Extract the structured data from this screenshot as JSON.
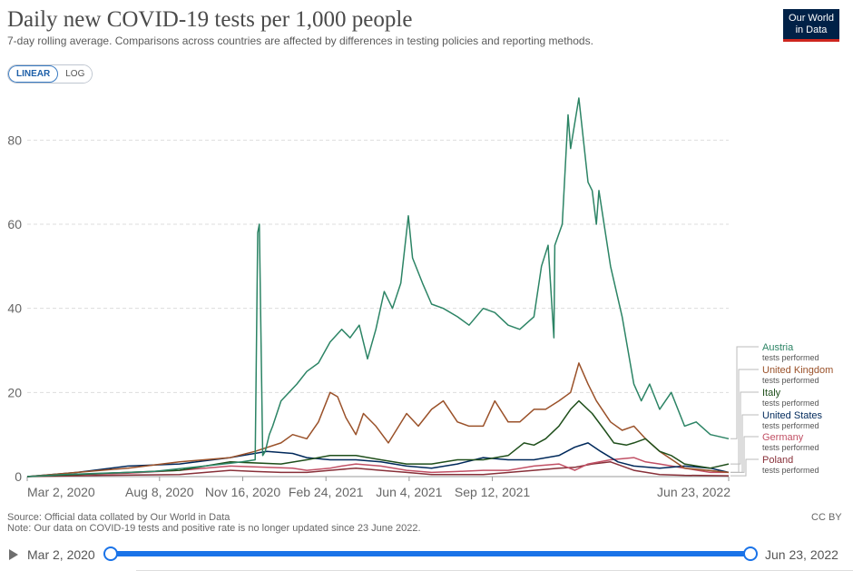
{
  "header": {
    "title": "Daily new COVID-19 tests per 1,000 people",
    "subtitle": "7-day rolling average. Comparisons across countries are affected by differences in testing policies and reporting methods.",
    "logo_line1": "Our World",
    "logo_line2": "in Data"
  },
  "controls": {
    "linear_label": "LINEAR",
    "log_label": "LOG",
    "active": "LINEAR"
  },
  "footer": {
    "source": "Source: Official data collated by Our World in Data",
    "note": "Note: Our data on COVID-19 tests and positive rate is no longer updated since 23 June 2022.",
    "license": "CC BY"
  },
  "timeline": {
    "start_label": "Mar 2, 2020",
    "end_label": "Jun 23, 2022"
  },
  "colors": {
    "Austria": "#2c8465",
    "United Kingdom": "#9a5129",
    "Italy": "#1f4f1b",
    "United States": "#00295b",
    "Germany": "#c15065",
    "Poland": "#883039",
    "grid": "#dddddd",
    "axis_text": "#666666"
  },
  "chart_data": {
    "type": "line",
    "title": "Daily new COVID-19 tests per 1,000 people",
    "xlim": [
      "2020-03-02",
      "2022-06-23"
    ],
    "ylim": [
      0,
      90
    ],
    "yticks": [
      0,
      20,
      40,
      60,
      80
    ],
    "xticks": [
      "2020-03-02",
      "2020-08-08",
      "2020-11-16",
      "2021-02-24",
      "2021-06-04",
      "2021-09-12",
      "2022-06-23"
    ],
    "xtick_labels": [
      "Mar 2, 2020",
      "Aug 8, 2020",
      "Nov 16, 2020",
      "Feb 24, 2021",
      "Jun 4, 2021",
      "Sep 12, 2021",
      "Jun 23, 2022"
    ],
    "grid": "horizontal dashed",
    "legend": "right, end of lines",
    "series_sublabel": "tests performed",
    "series": [
      {
        "name": "Austria",
        "x": [
          "2020-03-02",
          "2020-04-15",
          "2020-06-01",
          "2020-08-01",
          "2020-10-01",
          "2020-11-15",
          "2020-12-01",
          "2020-12-04",
          "2020-12-06",
          "2020-12-10",
          "2020-12-13",
          "2020-12-18",
          "2020-12-22",
          "2021-01-01",
          "2021-01-20",
          "2021-02-01",
          "2021-02-15",
          "2021-03-01",
          "2021-03-15",
          "2021-03-25",
          "2021-04-05",
          "2021-04-15",
          "2021-04-25",
          "2021-05-05",
          "2021-05-15",
          "2021-05-25",
          "2021-06-03",
          "2021-06-08",
          "2021-06-20",
          "2021-07-01",
          "2021-07-15",
          "2021-08-01",
          "2021-08-15",
          "2021-09-01",
          "2021-09-15",
          "2021-10-01",
          "2021-10-15",
          "2021-11-01",
          "2021-11-10",
          "2021-11-18",
          "2021-11-25",
          "2021-11-26",
          "2021-12-05",
          "2021-12-12",
          "2021-12-15",
          "2021-12-25",
          "2022-01-05",
          "2022-01-10",
          "2022-01-15",
          "2022-01-18",
          "2022-02-01",
          "2022-02-15",
          "2022-03-01",
          "2022-03-10",
          "2022-03-20",
          "2022-04-01",
          "2022-04-15",
          "2022-05-01",
          "2022-05-15",
          "2022-06-01",
          "2022-06-23"
        ],
        "y": [
          0,
          0.5,
          0.8,
          1.2,
          2.5,
          3.5,
          4,
          58,
          60,
          5,
          6,
          10,
          12,
          18,
          22,
          25,
          27,
          32,
          35,
          33,
          36,
          28,
          35,
          44,
          40,
          46,
          62,
          52,
          46,
          41,
          40,
          38,
          36,
          40,
          39,
          36,
          35,
          38,
          50,
          55,
          33,
          55,
          60,
          86,
          78,
          90,
          70,
          68,
          60,
          68,
          50,
          38,
          22,
          18,
          22,
          16,
          20,
          12,
          13,
          10,
          9
        ]
      },
      {
        "name": "United Kingdom",
        "x": [
          "2020-03-02",
          "2020-05-01",
          "2020-07-01",
          "2020-09-01",
          "2020-11-01",
          "2020-12-01",
          "2021-01-01",
          "2021-01-15",
          "2021-02-01",
          "2021-02-15",
          "2021-03-01",
          "2021-03-10",
          "2021-03-20",
          "2021-04-01",
          "2021-04-10",
          "2021-04-25",
          "2021-05-10",
          "2021-06-01",
          "2021-06-15",
          "2021-07-01",
          "2021-07-15",
          "2021-08-01",
          "2021-08-15",
          "2021-09-01",
          "2021-09-15",
          "2021-10-01",
          "2021-10-15",
          "2021-11-01",
          "2021-11-15",
          "2021-12-01",
          "2021-12-15",
          "2021-12-25",
          "2022-01-05",
          "2022-01-15",
          "2022-02-01",
          "2022-02-15",
          "2022-03-01",
          "2022-03-15",
          "2022-04-01",
          "2022-05-01",
          "2022-06-23"
        ],
        "y": [
          0,
          1,
          2,
          3.5,
          4.5,
          6,
          8,
          10,
          9,
          13,
          20,
          19,
          14,
          10,
          15,
          12,
          8,
          15,
          12,
          16,
          18,
          13,
          12,
          12,
          18,
          13,
          13,
          16,
          16,
          18,
          20,
          27,
          22,
          18,
          13,
          11,
          12,
          9,
          6,
          2,
          1
        ]
      },
      {
        "name": "Italy",
        "x": [
          "2020-03-02",
          "2020-05-01",
          "2020-07-01",
          "2020-09-01",
          "2020-11-01",
          "2021-01-01",
          "2021-02-01",
          "2021-03-01",
          "2021-04-01",
          "2021-05-01",
          "2021-06-01",
          "2021-07-01",
          "2021-08-01",
          "2021-09-01",
          "2021-10-01",
          "2021-10-20",
          "2021-11-01",
          "2021-11-15",
          "2021-12-01",
          "2021-12-15",
          "2021-12-25",
          "2022-01-10",
          "2022-01-25",
          "2022-02-05",
          "2022-02-20",
          "2022-03-01",
          "2022-03-15",
          "2022-04-01",
          "2022-04-15",
          "2022-05-01",
          "2022-06-01",
          "2022-06-23"
        ],
        "y": [
          0,
          0.5,
          1,
          1.5,
          3.5,
          3,
          4,
          5,
          5,
          4,
          3,
          3,
          4,
          4,
          5,
          8,
          7.5,
          9,
          12,
          16,
          18,
          15,
          11,
          8,
          7.5,
          8,
          9,
          6,
          5,
          3,
          2,
          3
        ]
      },
      {
        "name": "United States",
        "x": [
          "2020-03-02",
          "2020-05-01",
          "2020-07-01",
          "2020-09-01",
          "2020-11-01",
          "2020-12-15",
          "2021-01-15",
          "2021-02-01",
          "2021-03-01",
          "2021-04-01",
          "2021-05-01",
          "2021-06-01",
          "2021-07-01",
          "2021-08-01",
          "2021-09-01",
          "2021-10-01",
          "2021-11-01",
          "2021-12-01",
          "2021-12-20",
          "2022-01-05",
          "2022-01-20",
          "2022-02-10",
          "2022-03-01",
          "2022-04-01",
          "2022-05-01",
          "2022-06-01",
          "2022-06-23"
        ],
        "y": [
          0,
          1,
          2.5,
          3,
          4.5,
          6,
          5.5,
          4.5,
          4,
          4,
          3.5,
          2.5,
          2,
          3,
          4.5,
          4,
          4,
          5,
          7,
          8,
          6,
          3.5,
          2.5,
          2,
          2.5,
          2,
          1
        ]
      },
      {
        "name": "Germany",
        "x": [
          "2020-03-02",
          "2020-05-01",
          "2020-07-01",
          "2020-09-01",
          "2020-11-01",
          "2020-12-15",
          "2021-01-15",
          "2021-02-01",
          "2021-03-01",
          "2021-03-15",
          "2021-04-01",
          "2021-05-01",
          "2021-06-01",
          "2021-07-01",
          "2021-08-01",
          "2021-09-01",
          "2021-10-01",
          "2021-11-01",
          "2021-12-01",
          "2021-12-20",
          "2022-01-05",
          "2022-02-01",
          "2022-03-01",
          "2022-03-15",
          "2022-04-01",
          "2022-05-01",
          "2022-06-01",
          "2022-06-23"
        ],
        "y": [
          0,
          0.5,
          0.8,
          1.5,
          2.5,
          2.2,
          2,
          1.5,
          2,
          2.5,
          3,
          2.5,
          1.5,
          1,
          1.2,
          1.5,
          1.5,
          2.5,
          3,
          1.5,
          3,
          4,
          4.5,
          3.5,
          3,
          2,
          1,
          1
        ]
      },
      {
        "name": "Poland",
        "x": [
          "2020-03-02",
          "2020-06-01",
          "2020-09-01",
          "2020-11-01",
          "2020-12-01",
          "2021-01-01",
          "2021-02-01",
          "2021-03-01",
          "2021-04-01",
          "2021-05-01",
          "2021-06-01",
          "2021-07-01",
          "2021-09-01",
          "2021-11-01",
          "2021-12-01",
          "2021-12-20",
          "2022-01-10",
          "2022-02-01",
          "2022-03-01",
          "2022-04-01",
          "2022-05-01",
          "2022-06-23"
        ],
        "y": [
          0,
          0.3,
          0.5,
          1.5,
          1.2,
          1,
          1,
          1.5,
          2,
          1.5,
          1,
          0.5,
          0.5,
          1.5,
          2,
          2.2,
          3,
          3.5,
          1.5,
          0.5,
          0.3,
          0.2
        ]
      }
    ]
  }
}
